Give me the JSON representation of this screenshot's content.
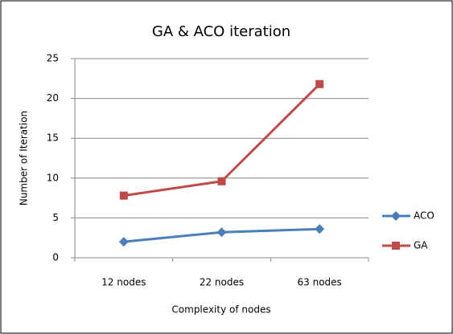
{
  "chart_data": {
    "type": "line",
    "title": "GA & ACO iteration",
    "x_label": "Complexity of nodes",
    "y_label": "Number of Iteration",
    "categories": [
      "12 nodes",
      "22 nodes",
      "63 nodes"
    ],
    "series": [
      {
        "name": "ACO",
        "color": "#4a7ebb",
        "marker": "diamond",
        "values": [
          2,
          3.2,
          3.6
        ]
      },
      {
        "name": "GA",
        "color": "#be4b48",
        "marker": "square",
        "values": [
          7.8,
          9.6,
          21.8
        ]
      }
    ],
    "ylim": [
      0,
      25
    ],
    "yticks": [
      0,
      5,
      10,
      15,
      20,
      25
    ],
    "grid": true,
    "legend": "right"
  }
}
